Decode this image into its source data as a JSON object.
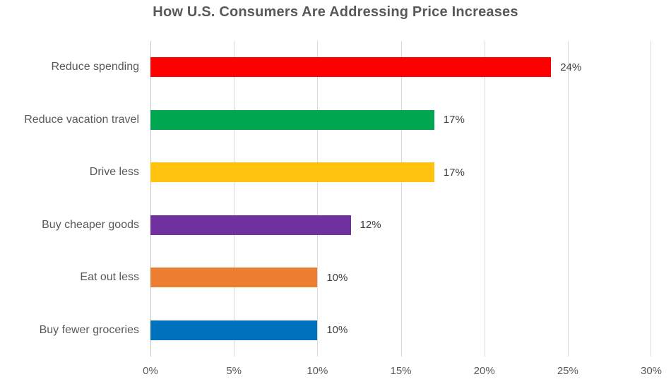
{
  "title": "How U.S. Consumers Are Addressing Price Increases",
  "chart_data": {
    "type": "bar",
    "orientation": "horizontal",
    "title": "How U.S. Consumers Are Addressing Price Increases",
    "categories": [
      "Reduce spending",
      "Reduce vacation travel",
      "Drive less",
      "Buy cheaper goods",
      "Eat out less",
      "Buy fewer groceries"
    ],
    "values": [
      24,
      17,
      17,
      12,
      10,
      10
    ],
    "value_labels": [
      "24%",
      "17%",
      "17%",
      "12%",
      "10%",
      "10%"
    ],
    "bar_colors": [
      "#FF0000",
      "#00A650",
      "#FFC20E",
      "#7030A0",
      "#ED7D31",
      "#0071BC"
    ],
    "xlabel": "",
    "ylabel": "",
    "xlim": [
      0,
      30
    ],
    "x_ticks": [
      "0%",
      "5%",
      "10%",
      "15%",
      "20%",
      "25%",
      "30%"
    ],
    "grid": true,
    "legend": false,
    "gridline_color": "#D9D9D9",
    "axis_line_color": "#C6C6C6",
    "title_color": "#595959",
    "category_label_color": "#595959",
    "value_label_color": "#404040",
    "tick_label_color": "#595959",
    "background_color": "#FFFFFF"
  }
}
